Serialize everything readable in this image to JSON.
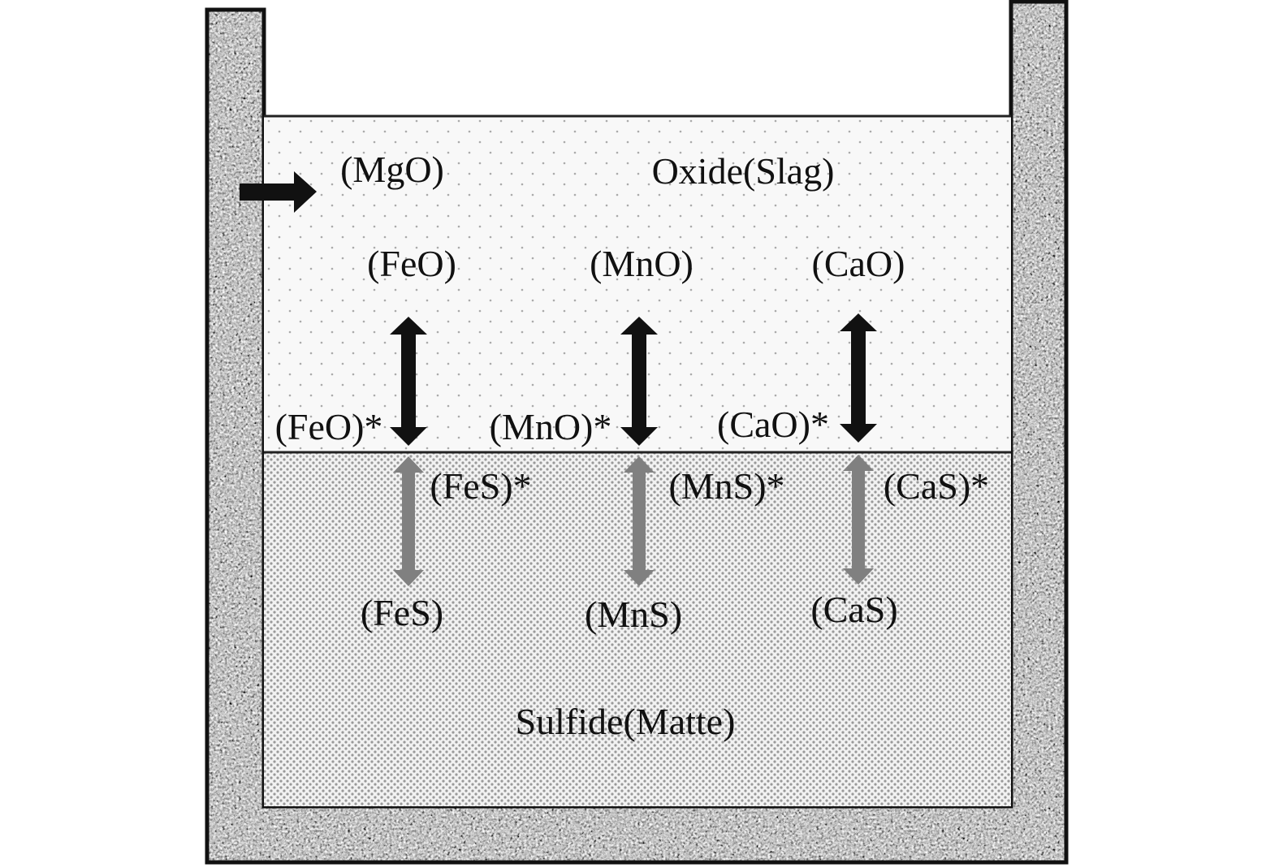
{
  "diagram": {
    "phases": {
      "slag_label": "Oxide(Slag)",
      "matte_label": "Sulfide(Matte)"
    },
    "slag_species": [
      "(MgO)",
      "(FeO)",
      "(MnO)",
      "(CaO)"
    ],
    "interface_oxides": [
      "(FeO)*",
      "(MnO)*",
      "(CaO)*"
    ],
    "interface_sulfides": [
      "(FeS)*",
      "(MnS)*",
      "(CaS)*"
    ],
    "matte_species": [
      "(FeS)",
      "(MnS)",
      "(CaS)"
    ],
    "colors": {
      "oxide_arrow": "#111111",
      "sulfide_arrow": "#808080",
      "wall": "#8a8a8a",
      "slag_fill": "#f7f7f7",
      "matte_fill": "#e6e6e6"
    }
  }
}
